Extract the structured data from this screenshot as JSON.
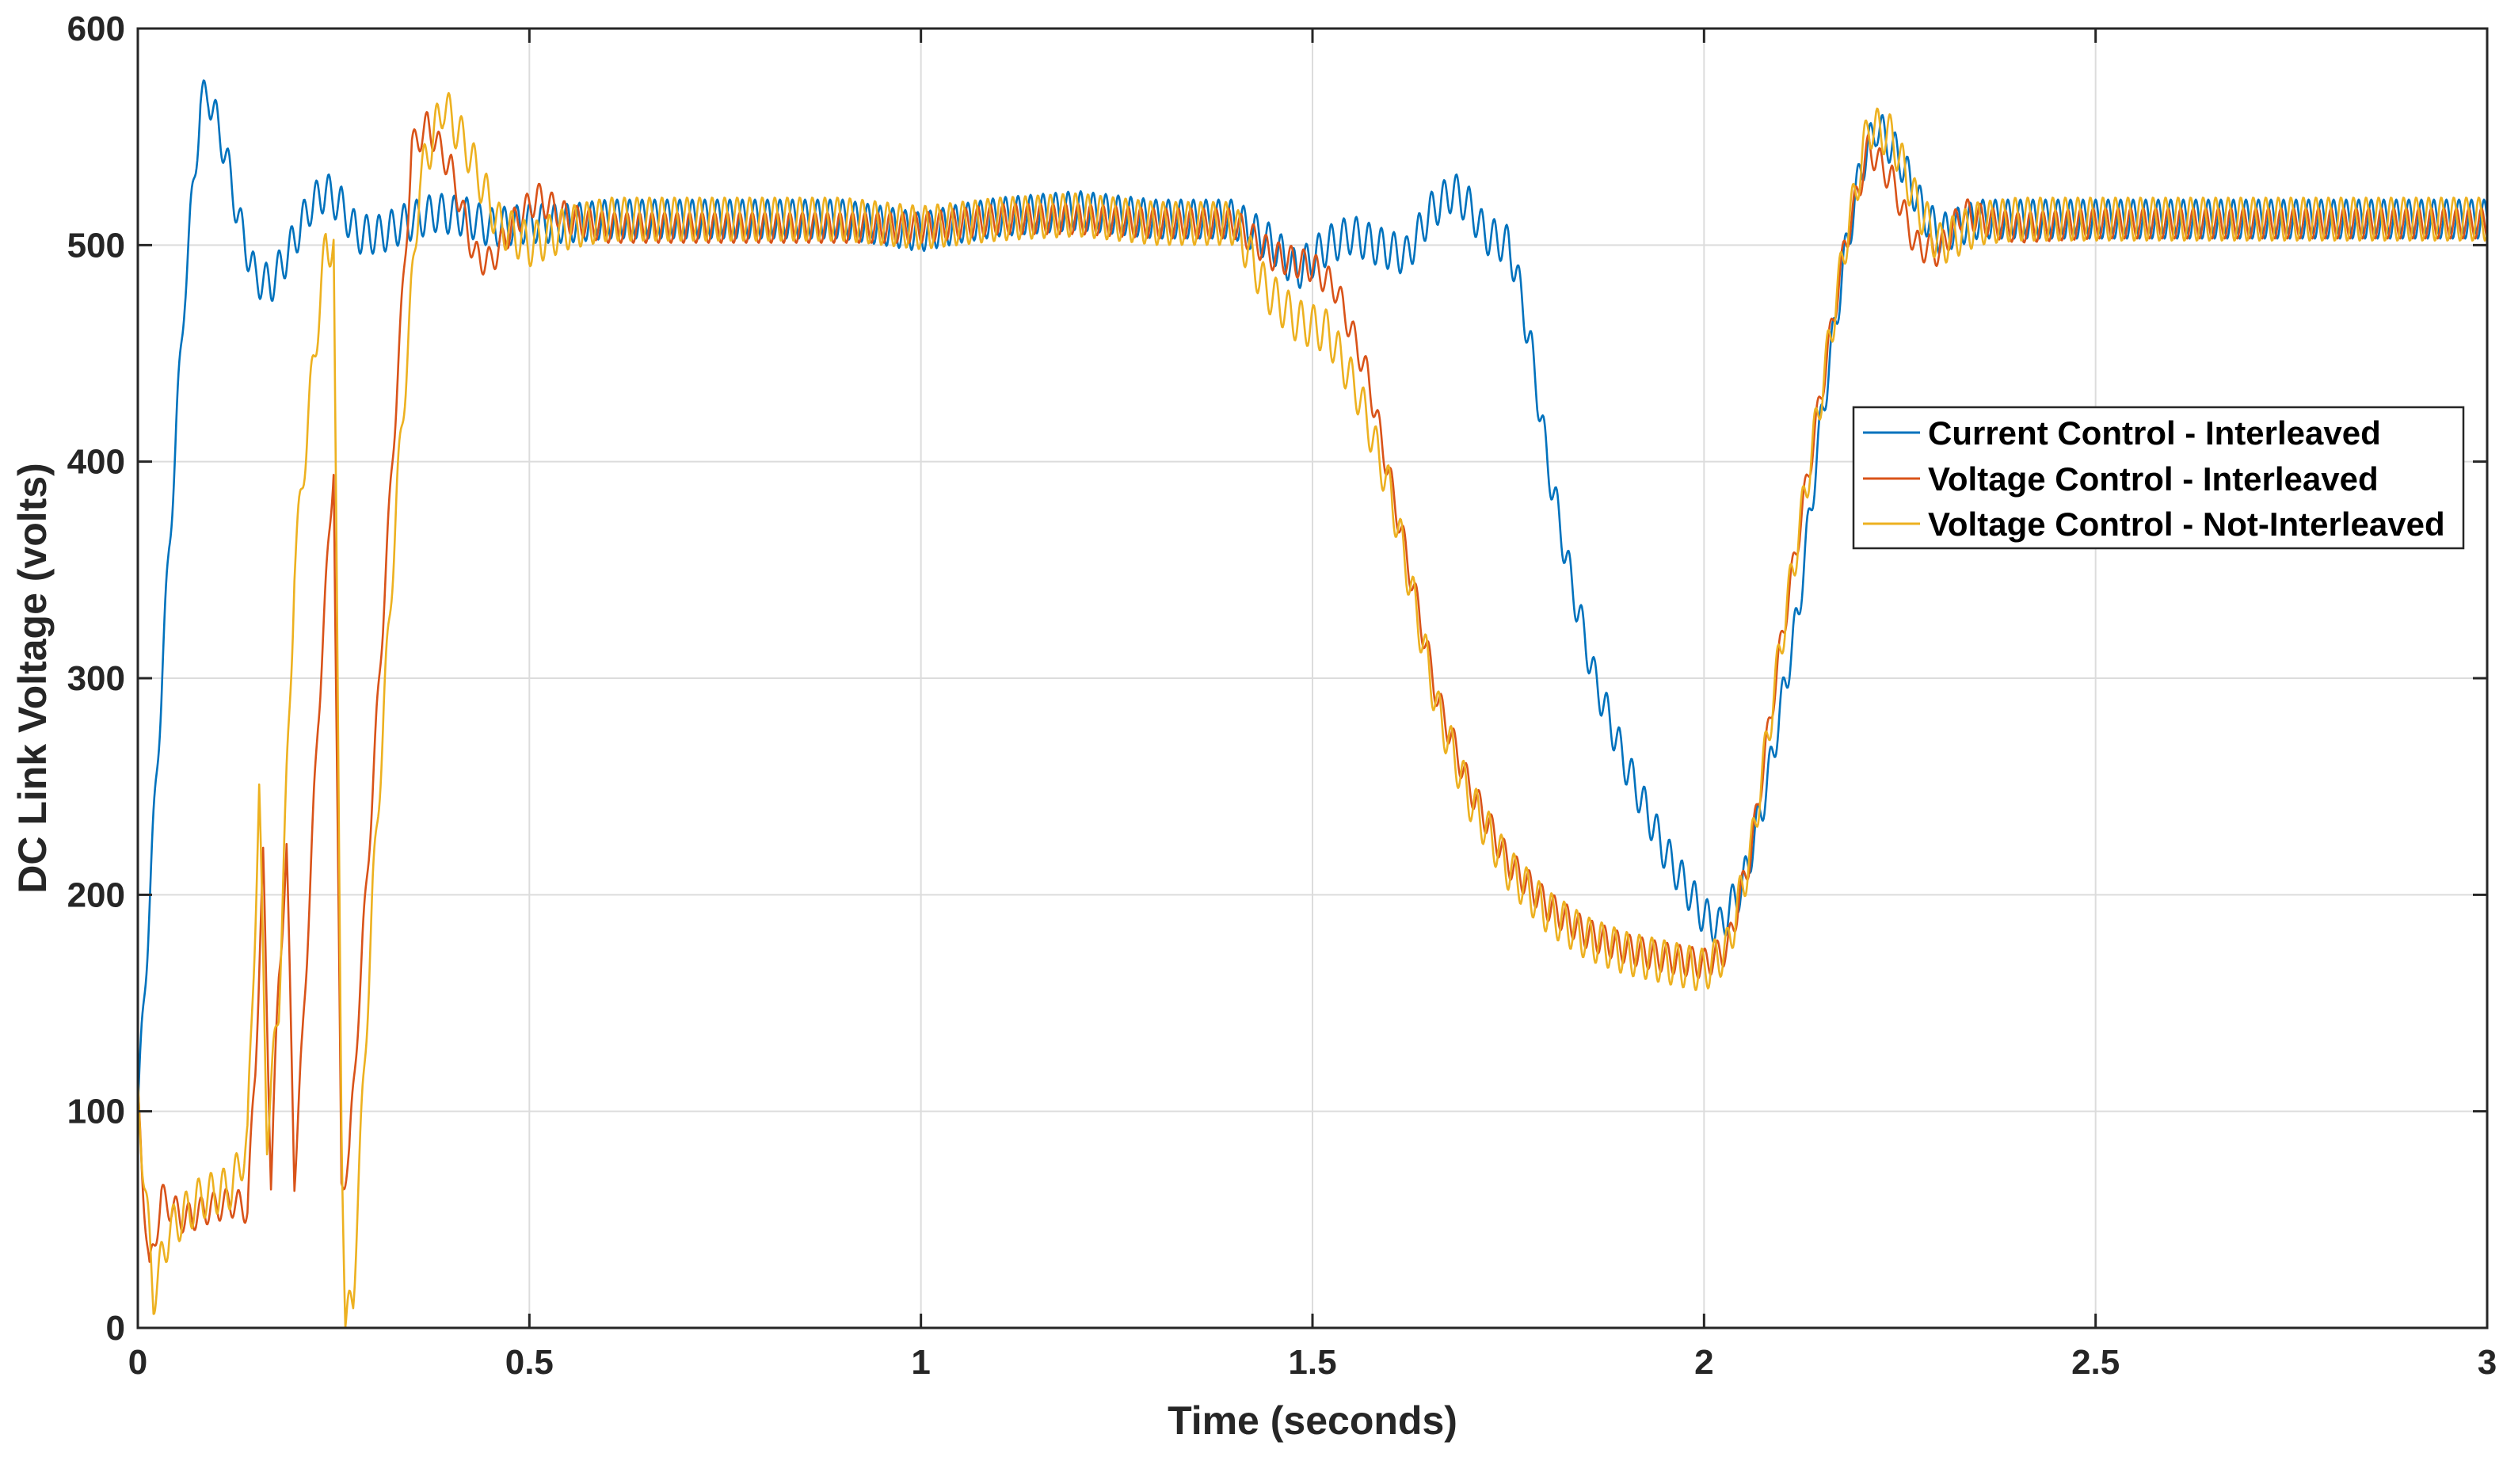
{
  "chart_data": {
    "type": "line",
    "title": "",
    "xlabel": "Time (seconds)",
    "ylabel": "DC Link Voltage (volts)",
    "xlim": [
      0,
      3
    ],
    "ylim": [
      0,
      600
    ],
    "grid": true,
    "legend_position": "right-middle",
    "xticks": [
      0,
      0.5,
      1,
      1.5,
      2,
      2.5,
      3
    ],
    "xtick_labels": [
      "0",
      "0.5",
      "1",
      "1.5",
      "2",
      "2.5",
      "3"
    ],
    "yticks": [
      0,
      100,
      200,
      300,
      400,
      500,
      600
    ],
    "ytick_labels": [
      "0",
      "100",
      "200",
      "300",
      "400",
      "500",
      "600"
    ],
    "series": [
      {
        "name": "Current Control - Interleaved",
        "color": "#0072BD",
        "ripple": {
          "amplitude": 9,
          "period": 0.016
        },
        "points": [
          [
            0,
            100
          ],
          [
            0.02,
            230
          ],
          [
            0.04,
            360
          ],
          [
            0.06,
            480
          ],
          [
            0.08,
            565
          ],
          [
            0.09,
            570
          ],
          [
            0.11,
            545
          ],
          [
            0.13,
            510
          ],
          [
            0.15,
            485
          ],
          [
            0.17,
            482
          ],
          [
            0.19,
            495
          ],
          [
            0.22,
            518
          ],
          [
            0.24,
            525
          ],
          [
            0.26,
            518
          ],
          [
            0.28,
            505
          ],
          [
            0.31,
            505
          ],
          [
            0.34,
            510
          ],
          [
            0.38,
            515
          ],
          [
            0.42,
            513
          ],
          [
            0.45,
            508
          ],
          [
            0.5,
            510
          ],
          [
            0.55,
            510
          ],
          [
            0.6,
            512
          ],
          [
            0.7,
            512
          ],
          [
            0.8,
            512
          ],
          [
            0.9,
            512
          ],
          [
            1.0,
            506
          ],
          [
            1.05,
            510
          ],
          [
            1.1,
            513
          ],
          [
            1.2,
            516
          ],
          [
            1.3,
            512
          ],
          [
            1.4,
            512
          ],
          [
            1.45,
            500
          ],
          [
            1.48,
            488
          ],
          [
            1.52,
            500
          ],
          [
            1.55,
            505
          ],
          [
            1.58,
            500
          ],
          [
            1.62,
            495
          ],
          [
            1.65,
            515
          ],
          [
            1.68,
            525
          ],
          [
            1.7,
            518
          ],
          [
            1.72,
            505
          ],
          [
            1.75,
            500
          ],
          [
            1.76,
            488
          ],
          [
            1.78,
            450
          ],
          [
            1.8,
            400
          ],
          [
            1.83,
            345
          ],
          [
            1.86,
            300
          ],
          [
            1.9,
            260
          ],
          [
            1.95,
            220
          ],
          [
            2.0,
            190
          ],
          [
            2.02,
            185
          ],
          [
            2.05,
            205
          ],
          [
            2.08,
            250
          ],
          [
            2.12,
            330
          ],
          [
            2.15,
            420
          ],
          [
            2.18,
            495
          ],
          [
            2.2,
            535
          ],
          [
            2.22,
            555
          ],
          [
            2.25,
            540
          ],
          [
            2.28,
            515
          ],
          [
            2.3,
            505
          ],
          [
            2.35,
            512
          ],
          [
            2.4,
            512
          ],
          [
            2.5,
            512
          ],
          [
            2.6,
            512
          ],
          [
            2.8,
            512
          ],
          [
            3.0,
            512
          ]
        ]
      },
      {
        "name": "Voltage Control - Interleaved",
        "color": "#D95319",
        "ripple": {
          "amplitude": 7,
          "period": 0.016
        },
        "points": [
          [
            0,
            105
          ],
          [
            0.005,
            75
          ],
          [
            0.015,
            25
          ],
          [
            0.03,
            60
          ],
          [
            0.06,
            50
          ],
          [
            0.09,
            55
          ],
          [
            0.12,
            58
          ],
          [
            0.14,
            55
          ],
          [
            0.15,
            120
          ],
          [
            0.16,
            215
          ],
          [
            0.17,
            70
          ],
          [
            0.18,
            160
          ],
          [
            0.19,
            220
          ],
          [
            0.2,
            70
          ],
          [
            0.21,
            130
          ],
          [
            0.23,
            280
          ],
          [
            0.25,
            400
          ],
          [
            0.26,
            65
          ],
          [
            0.27,
            80
          ],
          [
            0.3,
            250
          ],
          [
            0.33,
            430
          ],
          [
            0.35,
            545
          ],
          [
            0.37,
            555
          ],
          [
            0.4,
            535
          ],
          [
            0.43,
            495
          ],
          [
            0.45,
            492
          ],
          [
            0.48,
            510
          ],
          [
            0.51,
            522
          ],
          [
            0.55,
            512
          ],
          [
            0.6,
            508
          ],
          [
            0.7,
            508
          ],
          [
            0.8,
            508
          ],
          [
            0.9,
            508
          ],
          [
            1.0,
            508
          ],
          [
            1.05,
            510
          ],
          [
            1.1,
            512
          ],
          [
            1.2,
            512
          ],
          [
            1.3,
            510
          ],
          [
            1.4,
            510
          ],
          [
            1.45,
            495
          ],
          [
            1.5,
            490
          ],
          [
            1.53,
            480
          ],
          [
            1.57,
            440
          ],
          [
            1.6,
            390
          ],
          [
            1.63,
            340
          ],
          [
            1.66,
            290
          ],
          [
            1.7,
            250
          ],
          [
            1.75,
            215
          ],
          [
            1.8,
            195
          ],
          [
            1.85,
            182
          ],
          [
            1.9,
            175
          ],
          [
            1.95,
            171
          ],
          [
            2.0,
            168
          ],
          [
            2.03,
            175
          ],
          [
            2.06,
            220
          ],
          [
            2.1,
            320
          ],
          [
            2.14,
            410
          ],
          [
            2.18,
            500
          ],
          [
            2.21,
            545
          ],
          [
            2.24,
            530
          ],
          [
            2.27,
            500
          ],
          [
            2.3,
            497
          ],
          [
            2.33,
            515
          ],
          [
            2.37,
            510
          ],
          [
            2.4,
            508
          ],
          [
            2.5,
            510
          ],
          [
            2.6,
            510
          ],
          [
            2.8,
            510
          ],
          [
            3.0,
            510
          ]
        ]
      },
      {
        "name": "Voltage Control - Not-Interleaved",
        "color": "#EDB120",
        "ripple": {
          "amplitude": 10,
          "period": 0.016
        },
        "points": [
          [
            0,
            110
          ],
          [
            0.008,
            70
          ],
          [
            0.02,
            15
          ],
          [
            0.04,
            45
          ],
          [
            0.08,
            60
          ],
          [
            0.12,
            65
          ],
          [
            0.14,
            85
          ],
          [
            0.155,
            245
          ],
          [
            0.165,
            90
          ],
          [
            0.18,
            150
          ],
          [
            0.2,
            350
          ],
          [
            0.22,
            430
          ],
          [
            0.24,
            500
          ],
          [
            0.25,
            500
          ],
          [
            0.26,
            100
          ],
          [
            0.265,
            0
          ],
          [
            0.275,
            15
          ],
          [
            0.3,
            200
          ],
          [
            0.33,
            380
          ],
          [
            0.36,
            530
          ],
          [
            0.39,
            565
          ],
          [
            0.42,
            545
          ],
          [
            0.46,
            510
          ],
          [
            0.5,
            500
          ],
          [
            0.55,
            508
          ],
          [
            0.6,
            512
          ],
          [
            0.7,
            512
          ],
          [
            0.8,
            512
          ],
          [
            0.9,
            512
          ],
          [
            1.0,
            508
          ],
          [
            1.1,
            512
          ],
          [
            1.2,
            514
          ],
          [
            1.3,
            510
          ],
          [
            1.4,
            510
          ],
          [
            1.44,
            480
          ],
          [
            1.48,
            465
          ],
          [
            1.52,
            460
          ],
          [
            1.56,
            430
          ],
          [
            1.6,
            385
          ],
          [
            1.63,
            335
          ],
          [
            1.66,
            285
          ],
          [
            1.7,
            245
          ],
          [
            1.75,
            212
          ],
          [
            1.8,
            192
          ],
          [
            1.85,
            180
          ],
          [
            1.9,
            173
          ],
          [
            1.95,
            169
          ],
          [
            2.0,
            165
          ],
          [
            2.03,
            175
          ],
          [
            2.06,
            220
          ],
          [
            2.1,
            320
          ],
          [
            2.14,
            410
          ],
          [
            2.18,
            500
          ],
          [
            2.21,
            555
          ],
          [
            2.24,
            550
          ],
          [
            2.27,
            520
          ],
          [
            2.3,
            500
          ],
          [
            2.35,
            510
          ],
          [
            2.4,
            512
          ],
          [
            2.5,
            512
          ],
          [
            2.6,
            512
          ],
          [
            2.8,
            512
          ],
          [
            3.0,
            512
          ]
        ]
      }
    ]
  }
}
